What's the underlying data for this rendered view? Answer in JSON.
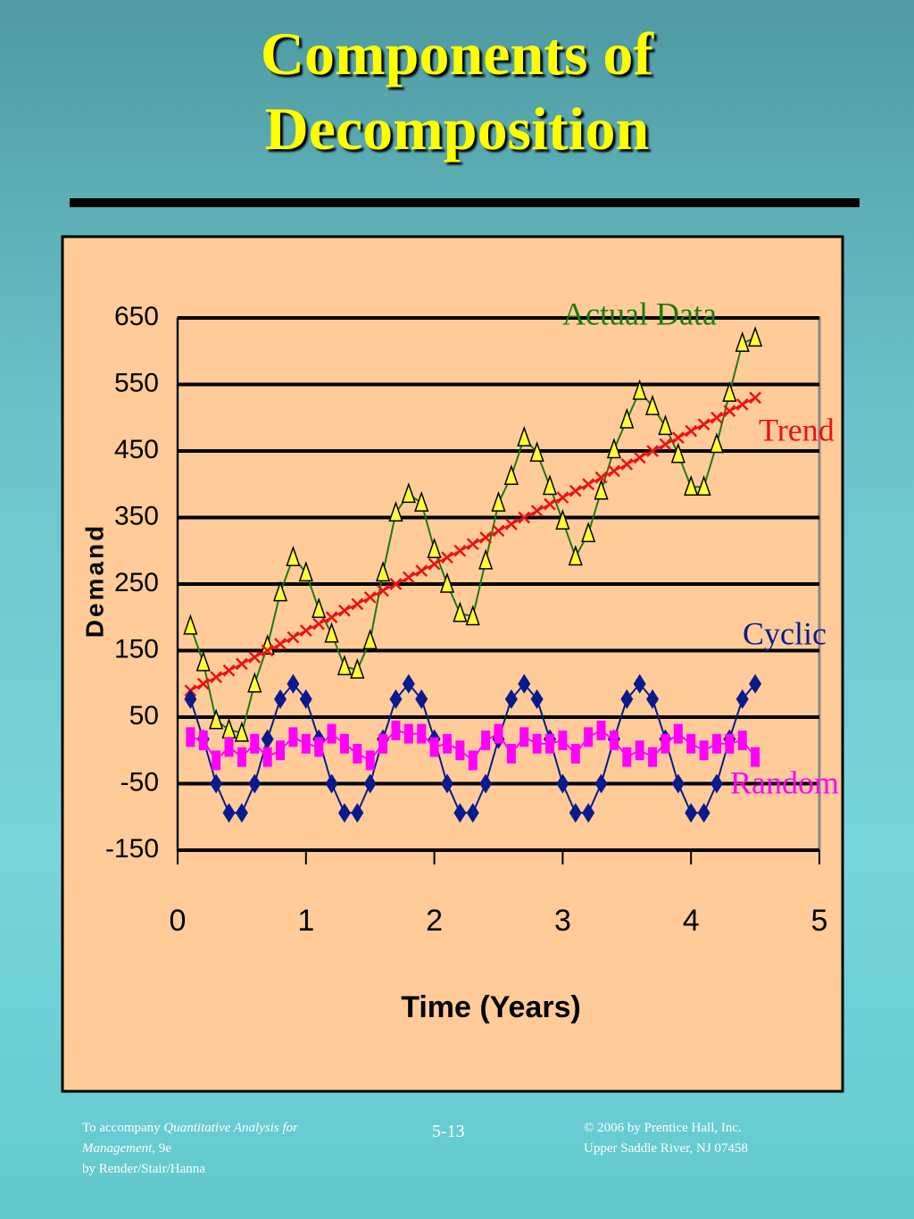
{
  "title": "Components of Decomposition",
  "chart_data": {
    "type": "line",
    "x_label": "Time (Years)",
    "y_label": "Demand",
    "xlim": [
      0,
      5
    ],
    "xticks": [
      0,
      1,
      2,
      3,
      4,
      5
    ],
    "ylim": [
      -150,
      650
    ],
    "yticks": [
      -150,
      -50,
      50,
      150,
      250,
      350,
      450,
      550,
      650
    ],
    "grid": true,
    "x": [
      0.1,
      0.2,
      0.3,
      0.4,
      0.5,
      0.6,
      0.7,
      0.8,
      0.9,
      1.0,
      1.1,
      1.2,
      1.3,
      1.4,
      1.5,
      1.6,
      1.7,
      1.8,
      1.9,
      2.0,
      2.1,
      2.2,
      2.3,
      2.4,
      2.5,
      2.6,
      2.7,
      2.8,
      2.9,
      3.0,
      3.1,
      3.2,
      3.3,
      3.4,
      3.5,
      3.6,
      3.7,
      3.8,
      3.9,
      4.0,
      4.1,
      4.2,
      4.3,
      4.4,
      4.5
    ],
    "series": [
      {
        "name": "Actual Data",
        "color": "#1f7a0c",
        "marker": "triangle",
        "values": [
          187,
          132,
          45,
          31,
          26,
          100,
          157,
          237,
          290,
          267,
          212,
          175,
          126,
          121,
          165,
          267,
          357,
          385,
          372,
          302,
          250,
          206,
          201,
          285,
          372,
          412,
          470,
          447,
          397,
          345,
          291,
          326,
          390,
          452,
          497,
          540,
          517,
          487,
          445,
          396,
          396,
          460,
          537,
          612,
          620
        ]
      },
      {
        "name": "Trend",
        "color": "#ee1111",
        "marker": "x",
        "values": [
          90,
          100,
          110,
          120,
          130,
          140,
          150,
          160,
          170,
          180,
          190,
          200,
          210,
          220,
          230,
          240,
          250,
          260,
          270,
          280,
          290,
          300,
          310,
          320,
          330,
          340,
          350,
          360,
          370,
          380,
          390,
          400,
          410,
          420,
          430,
          440,
          450,
          460,
          470,
          480,
          490,
          500,
          510,
          520,
          530
        ]
      },
      {
        "name": "Cyclic",
        "color": "#0a1a8c",
        "marker": "diamond",
        "values": [
          77,
          17,
          -50,
          -94,
          -94,
          -50,
          17,
          77,
          100,
          77,
          17,
          -50,
          -94,
          -94,
          -50,
          17,
          77,
          100,
          77,
          17,
          -50,
          -94,
          -94,
          -50,
          17,
          77,
          100,
          77,
          17,
          -50,
          -94,
          -94,
          -50,
          17,
          77,
          100,
          77,
          17,
          -50,
          -94,
          -94,
          -50,
          17,
          77,
          100
        ]
      },
      {
        "name": "Random",
        "color": "#ff00ff",
        "marker": "square",
        "values": [
          20,
          15,
          -15,
          5,
          -10,
          10,
          -10,
          0,
          20,
          10,
          5,
          25,
          10,
          -5,
          -15,
          10,
          30,
          25,
          25,
          5,
          10,
          0,
          -15,
          15,
          25,
          -5,
          20,
          10,
          10,
          15,
          -5,
          20,
          30,
          15,
          -10,
          0,
          -10,
          10,
          25,
          10,
          0,
          10,
          10,
          15,
          -10
        ]
      }
    ]
  },
  "footer": {
    "left": [
      "To accompany",
      "Quantitative Analysis for Management,",
      "9e",
      "by Render/Stair/Hanna"
    ],
    "page": "5-13",
    "right": [
      "© 2006 by Prentice Hall, Inc.",
      "Upper Saddle River,  NJ 07458"
    ]
  }
}
